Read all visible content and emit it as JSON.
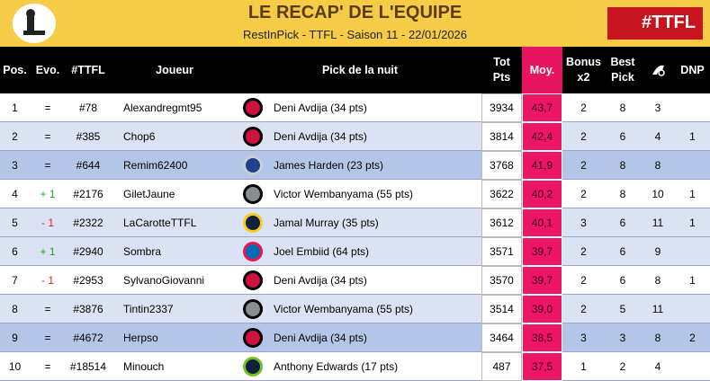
{
  "header": {
    "title": "LE RECAP' DE L'EQUIPE",
    "subtitle": "RestInPick - TTFL - Saison 11 - 22/01/2026",
    "logo_text": "#TTFL"
  },
  "table": {
    "columns": [
      "Pos.",
      "Evo.",
      "#TTFL",
      "Joueur",
      "Pick de la nuit",
      [
        "Tot",
        "Pts"
      ],
      "Moy.",
      [
        "Bonus",
        "x2"
      ],
      [
        "Best",
        "Pick"
      ],
      null,
      "DNP"
    ],
    "rows": [
      [
        "1",
        "=",
        "#78",
        "Alexandregmt95",
        "Deni Avdija (34 pts)",
        "3934",
        "43,7",
        "2",
        "8",
        "3",
        null
      ],
      [
        "2",
        "=",
        "#385",
        "Chop6",
        "Deni Avdija (34 pts)",
        "3814",
        "42,4",
        "2",
        "6",
        "4",
        "1"
      ],
      [
        "3",
        "=",
        "#644",
        "Remim62400",
        "James Harden (23 pts)",
        "3768",
        "41,9",
        "2",
        "8",
        "8",
        null
      ],
      [
        "4",
        "+ 1",
        "#2176",
        "GiletJaune",
        "Victor Wembanyama (55 pts)",
        "3622",
        "40,2",
        "2",
        "8",
        "10",
        "1"
      ],
      [
        "5",
        "- 1",
        "#2322",
        "LaCarotteTTFL",
        "Jamal Murray (35 pts)",
        "3612",
        "40,1",
        "3",
        "6",
        "11",
        "1"
      ],
      [
        "6",
        "+ 1",
        "#2940",
        "Sombra",
        "Joel Embiid (64 pts)",
        "3571",
        "39,7",
        "2",
        "6",
        "9",
        null
      ],
      [
        "7",
        "- 1",
        "#2953",
        "SylvanoGiovanni",
        "Deni Avdija (34 pts)",
        "3570",
        "39,7",
        "2",
        "6",
        "8",
        "1"
      ],
      [
        "8",
        "=",
        "#3876",
        "Tintin2337",
        "Victor Wembanyama (55 pts)",
        "3514",
        "39,0",
        "2",
        "5",
        "11",
        null
      ],
      [
        "9",
        "=",
        "#4672",
        "Herpso",
        "Deni Avdija (34 pts)",
        "3464",
        "38,5",
        "3",
        "3",
        "8",
        "2"
      ],
      [
        "10",
        "=",
        "#18514",
        "Minouch",
        "Anthony Edwards (17 pts)",
        "487",
        "37,5",
        "1",
        "2",
        "4",
        null
      ]
    ]
  }
}
